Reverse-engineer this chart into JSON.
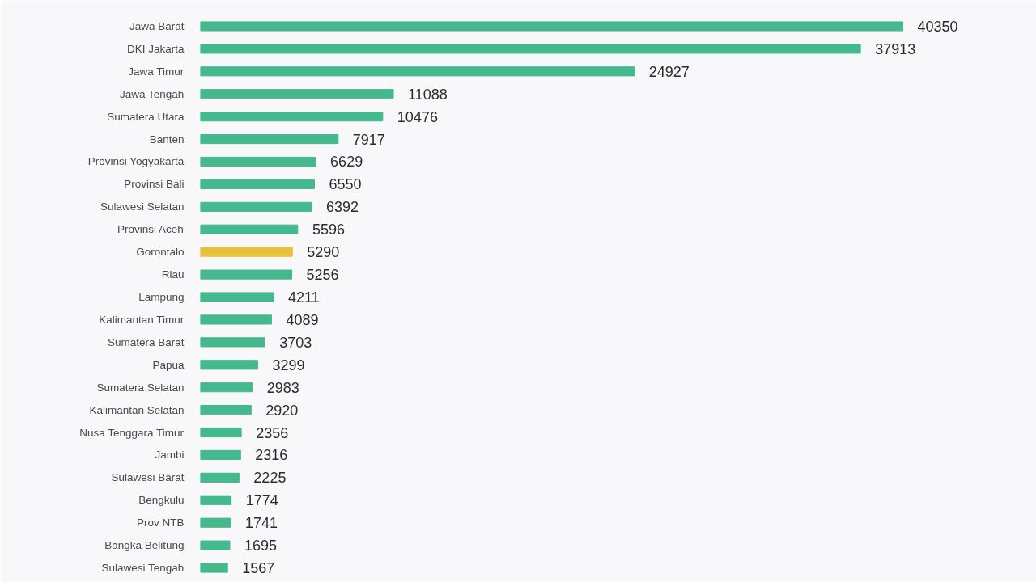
{
  "chart_data": {
    "type": "bar",
    "orientation": "horizontal",
    "categories": [
      "Jawa Barat",
      "DKI Jakarta",
      "Jawa Timur",
      "Jawa Tengah",
      "Sumatera Utara",
      "Banten",
      "Provinsi Yogyakarta",
      "Provinsi Bali",
      "Sulawesi Selatan",
      "Provinsi Aceh",
      "Gorontalo",
      "Riau",
      "Lampung",
      "Kalimantan Timur",
      "Sumatera Barat",
      "Papua",
      "Sumatera Selatan",
      "Kalimantan Selatan",
      "Nusa Tenggara Timur",
      "Jambi",
      "Sulawesi Barat",
      "Bengkulu",
      "Prov NTB",
      "Bangka Belitung",
      "Sulawesi Tengah"
    ],
    "values": [
      40350,
      37913,
      24927,
      11088,
      10476,
      7917,
      6629,
      6550,
      6392,
      5596,
      5290,
      5256,
      4211,
      4089,
      3703,
      3299,
      2983,
      2920,
      2356,
      2316,
      2225,
      1774,
      1741,
      1695,
      1567
    ],
    "colors": [
      "#45b98d",
      "#45b98d",
      "#45b98d",
      "#45b98d",
      "#45b98d",
      "#45b98d",
      "#45b98d",
      "#45b98d",
      "#45b98d",
      "#45b98d",
      "#e5c13e",
      "#45b98d",
      "#45b98d",
      "#45b98d",
      "#45b98d",
      "#45b98d",
      "#45b98d",
      "#45b98d",
      "#45b98d",
      "#45b98d",
      "#45b98d",
      "#45b98d",
      "#45b98d",
      "#45b98d",
      "#45b98d"
    ],
    "data_labels": true
  }
}
